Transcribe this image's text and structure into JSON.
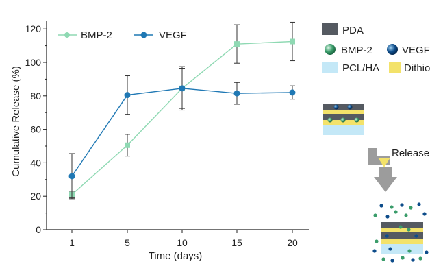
{
  "chart_data": {
    "type": "line",
    "xlabel": "Time (days)",
    "ylabel": "Cumulative Release (%)",
    "x": [
      1,
      5,
      10,
      15,
      20
    ],
    "xticks": [
      "1",
      "5",
      "10",
      "15",
      "20"
    ],
    "ylim": [
      0,
      125
    ],
    "yticks": [
      0,
      20,
      40,
      60,
      80,
      100,
      120
    ],
    "grid": false,
    "legend_position": "top-left",
    "series": [
      {
        "name": "BMP-2",
        "color": "#8fd9b3",
        "marker": "square",
        "values": [
          21,
          50.5,
          84.5,
          111,
          112.5
        ],
        "error": [
          2,
          6.5,
          12,
          11.5,
          11.5
        ]
      },
      {
        "name": "VEGF",
        "color": "#1f78b4",
        "marker": "circle",
        "values": [
          32,
          80.5,
          84.5,
          81.5,
          82
        ],
        "error": [
          13.5,
          11.5,
          13,
          6.5,
          4
        ]
      }
    ]
  },
  "schematic": {
    "legend_items": [
      {
        "label": "PDA",
        "swatch": "#555a61"
      },
      {
        "label": "BMP-2",
        "swatch": "#3a9c6a"
      },
      {
        "label": "VEGF",
        "swatch": "#0d4c8a"
      },
      {
        "label": "PCL/HA",
        "swatch": "#c4e8f7"
      },
      {
        "label": "Dithio",
        "swatch": "#f3e26a"
      }
    ],
    "release_label": "Release",
    "arrow_color": "#9c9c9c"
  }
}
